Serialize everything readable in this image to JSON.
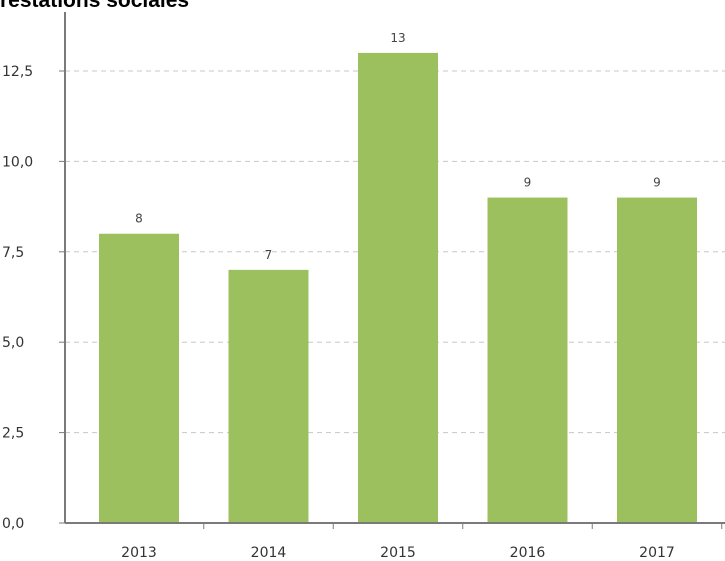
{
  "chart_data": {
    "type": "bar",
    "title": "Prestations sociales",
    "categories": [
      "2013",
      "2014",
      "2015",
      "2016",
      "2017"
    ],
    "values": [
      8,
      7,
      13,
      9,
      9
    ],
    "data_labels": [
      "8",
      "7",
      "13",
      "9",
      "9"
    ],
    "y_ticks": [
      0,
      2.5,
      5,
      7.5,
      10,
      12.5
    ],
    "y_tick_labels": [
      "0,0",
      "2,5",
      "5,0",
      "7,5",
      "10,0",
      "12,5"
    ],
    "ylim": [
      0,
      14.4
    ],
    "grid": true,
    "legend": "none",
    "bar_color": "#9dc05f",
    "grid_color": "#c8c8c8",
    "axis_color": "#7a7a7a"
  }
}
